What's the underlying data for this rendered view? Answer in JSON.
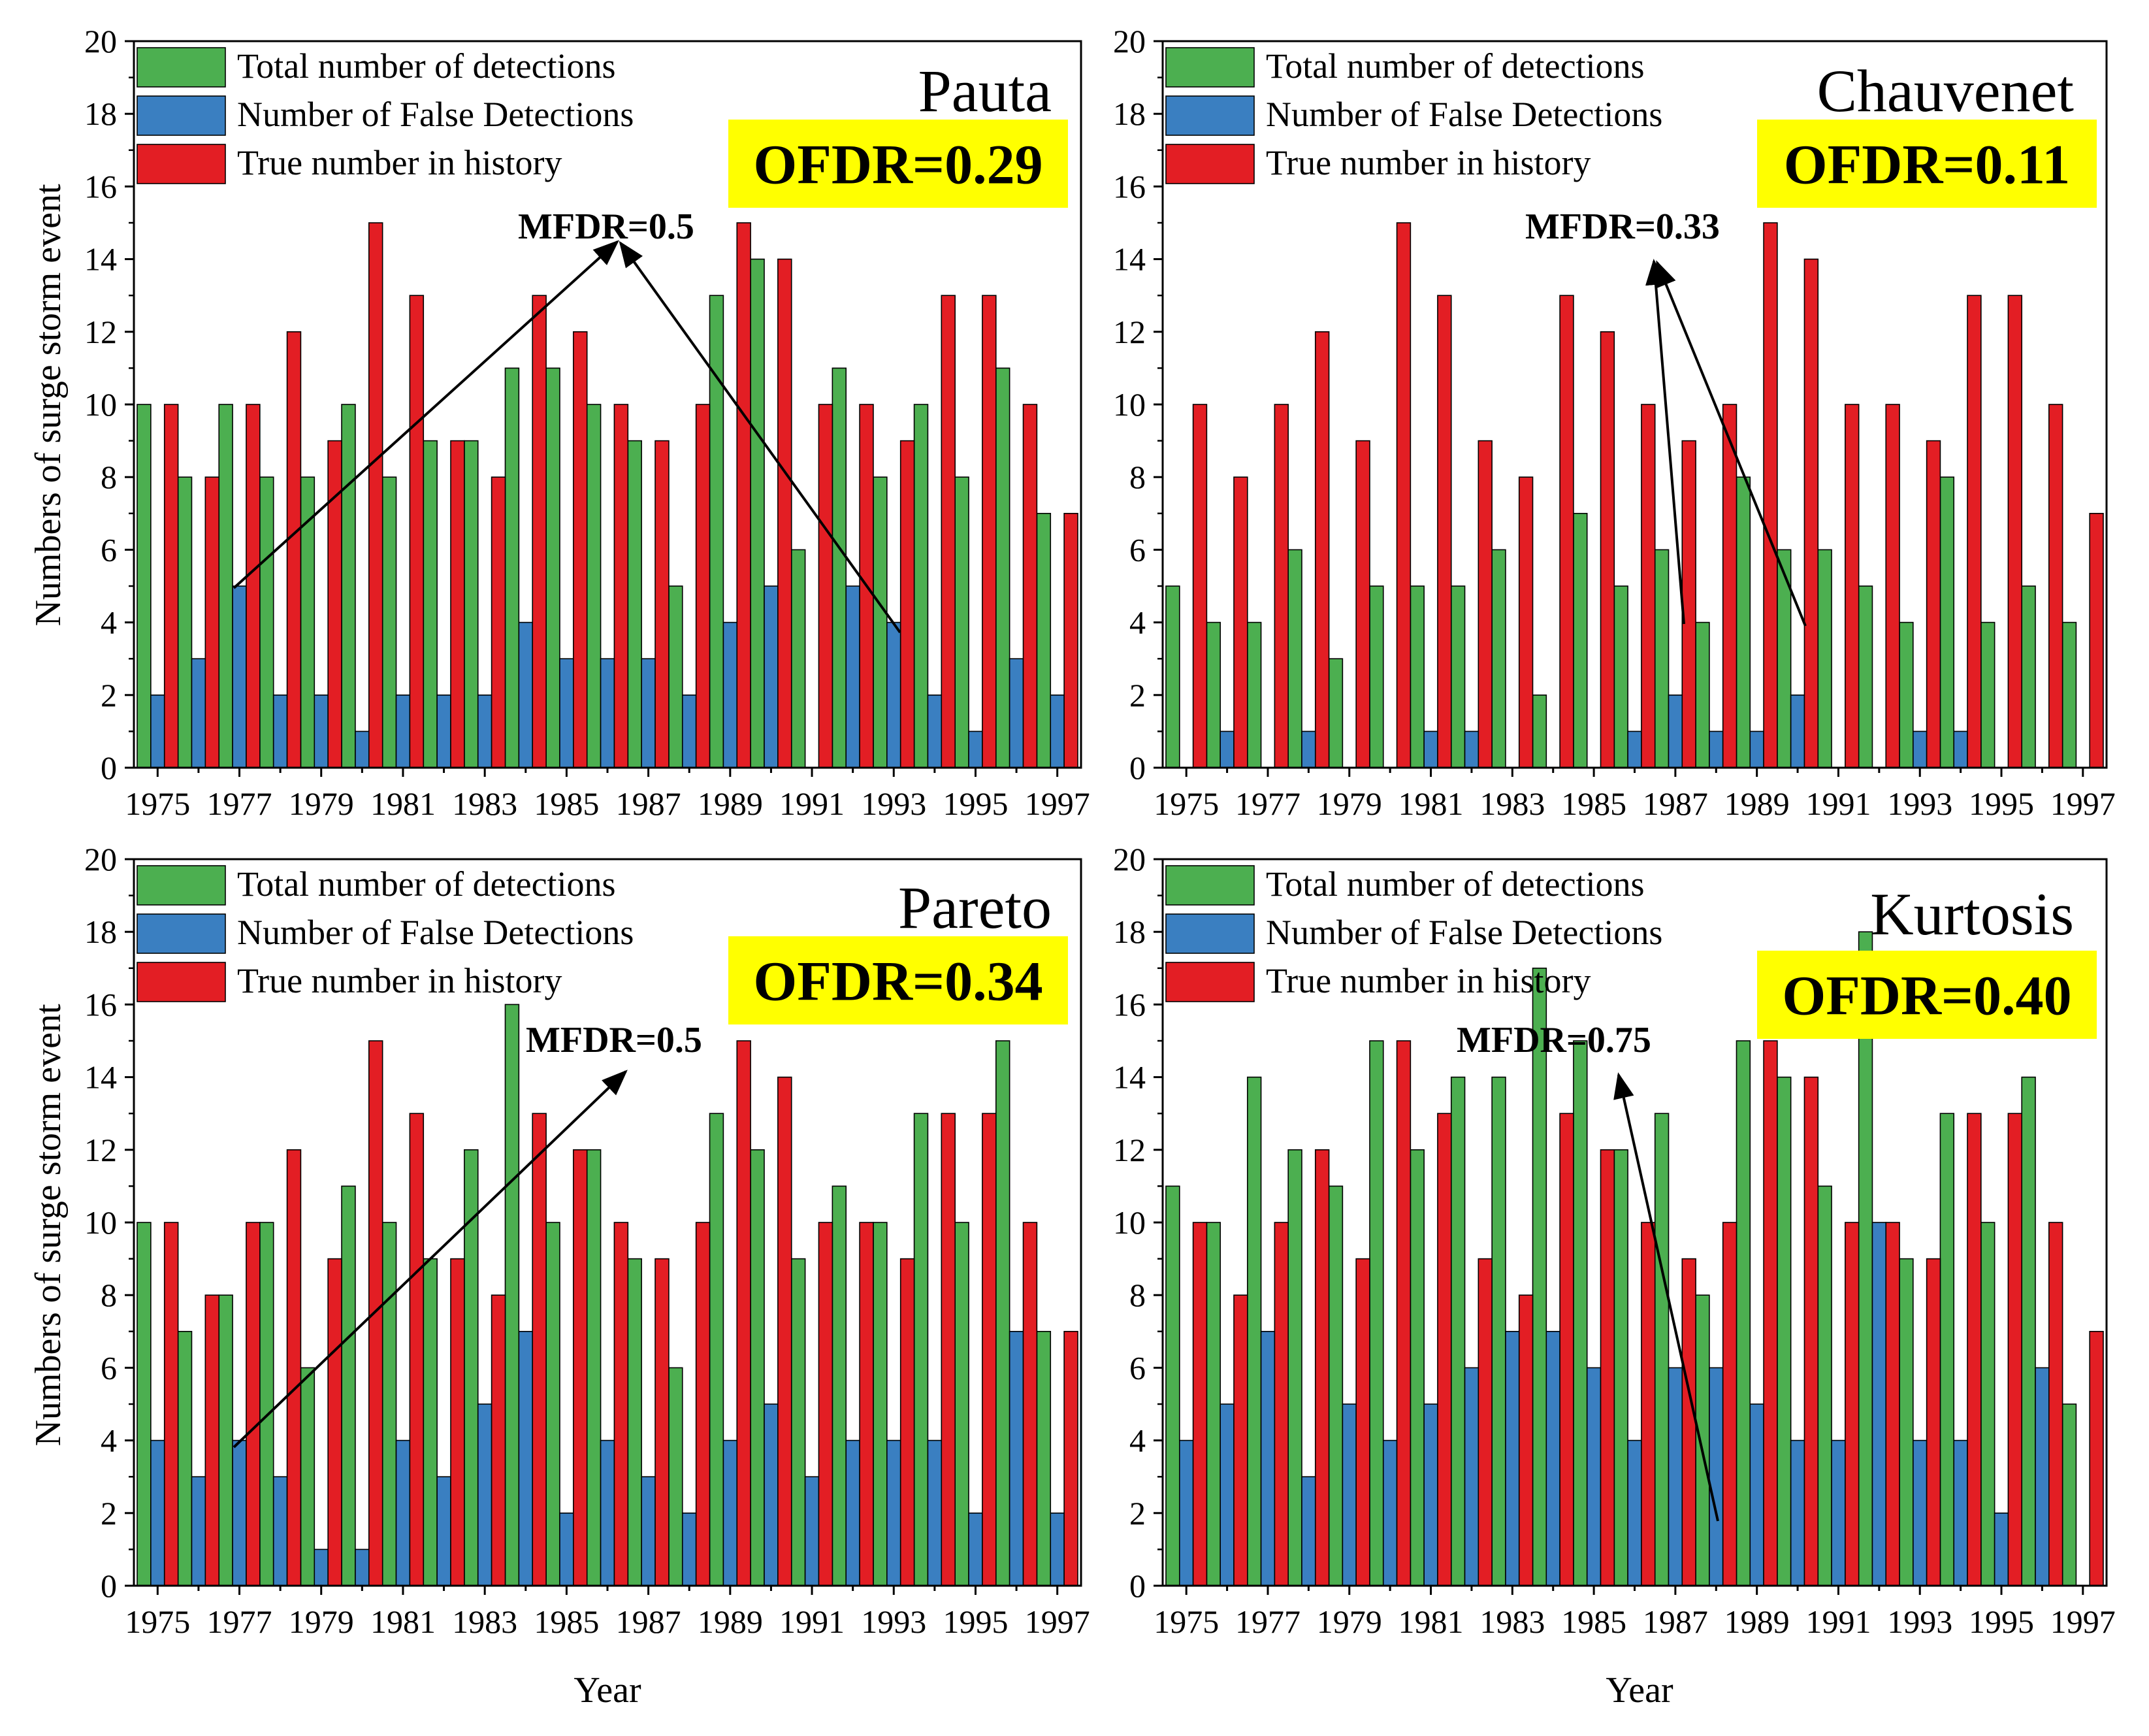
{
  "xlabel": "Year",
  "ylabel": "Numbers of surge storm event",
  "colors": {
    "total": "#4CAF50",
    "false": "#3A7FC1",
    "true": "#E31E24",
    "highlight": "#FFFF00"
  },
  "chart_data": [
    {
      "type": "bar",
      "method": "Pauta",
      "ofdr": "OFDR=0.29",
      "mfdr": "MFDR=0.5",
      "categories": [
        "1975",
        "1976",
        "1977",
        "1978",
        "1979",
        "1980",
        "1981",
        "1982",
        "1983",
        "1984",
        "1985",
        "1986",
        "1987",
        "1988",
        "1989",
        "1990",
        "1991",
        "1992",
        "1993",
        "1994",
        "1995",
        "1996",
        "1997"
      ],
      "xtick_labels": [
        "1975",
        "1977",
        "1979",
        "1981",
        "1983",
        "1985",
        "1987",
        "1989",
        "1991",
        "1993",
        "1995",
        "1997"
      ],
      "ylim": [
        0,
        20
      ],
      "yticks": [
        "0",
        "2",
        "4",
        "6",
        "8",
        "10",
        "12",
        "14",
        "16",
        "18",
        "20"
      ],
      "series": [
        {
          "name": "Total number of detections",
          "values": [
            10,
            8,
            10,
            8,
            8,
            10,
            8,
            9,
            9,
            11,
            11,
            10,
            9,
            5,
            13,
            14,
            6,
            11,
            8,
            10,
            8,
            11,
            7
          ]
        },
        {
          "name": "Number of False Detections",
          "values": [
            2,
            3,
            5,
            2,
            2,
            1,
            2,
            2,
            2,
            4,
            3,
            3,
            3,
            2,
            4,
            5,
            0,
            5,
            4,
            2,
            1,
            3,
            2
          ]
        },
        {
          "name": "True number in history",
          "values": [
            10,
            8,
            10,
            12,
            9,
            15,
            13,
            9,
            8,
            13,
            12,
            10,
            9,
            10,
            15,
            14,
            10,
            10,
            9,
            13,
            13,
            10,
            7
          ]
        }
      ],
      "legend": [
        "Total number of detections",
        "Number of False Detections",
        "True number in history"
      ]
    },
    {
      "type": "bar",
      "method": "Chauvenet",
      "ofdr": "OFDR=0.11",
      "mfdr": "MFDR=0.33",
      "categories": [
        "1975",
        "1976",
        "1977",
        "1978",
        "1979",
        "1980",
        "1981",
        "1982",
        "1983",
        "1984",
        "1985",
        "1986",
        "1987",
        "1988",
        "1989",
        "1990",
        "1991",
        "1992",
        "1993",
        "1994",
        "1995",
        "1996",
        "1997"
      ],
      "xtick_labels": [
        "1975",
        "1977",
        "1979",
        "1981",
        "1983",
        "1985",
        "1987",
        "1989",
        "1991",
        "1993",
        "1995",
        "1997"
      ],
      "ylim": [
        0,
        20
      ],
      "yticks": [
        "0",
        "2",
        "4",
        "6",
        "8",
        "10",
        "12",
        "14",
        "16",
        "18",
        "20"
      ],
      "series": [
        {
          "name": "Total number of detections",
          "values": [
            5,
            4,
            4,
            6,
            3,
            5,
            5,
            5,
            6,
            2,
            7,
            5,
            6,
            4,
            8,
            6,
            6,
            5,
            4,
            8,
            4,
            5,
            4
          ]
        },
        {
          "name": "Number of False Detections",
          "values": [
            0,
            1,
            0,
            1,
            0,
            0,
            1,
            1,
            0,
            0,
            0,
            1,
            2,
            1,
            1,
            2,
            0,
            0,
            1,
            1,
            0,
            0,
            0
          ]
        },
        {
          "name": "True number in history",
          "values": [
            10,
            8,
            10,
            12,
            9,
            15,
            13,
            9,
            8,
            13,
            12,
            10,
            9,
            10,
            15,
            14,
            10,
            10,
            9,
            13,
            13,
            10,
            7
          ]
        }
      ],
      "legend": [
        "Total number of detections",
        "Number of False Detections",
        "True number in history"
      ]
    },
    {
      "type": "bar",
      "method": "Pareto",
      "ofdr": "OFDR=0.34",
      "mfdr": "MFDR=0.5",
      "categories": [
        "1975",
        "1976",
        "1977",
        "1978",
        "1979",
        "1980",
        "1981",
        "1982",
        "1983",
        "1984",
        "1985",
        "1986",
        "1987",
        "1988",
        "1989",
        "1990",
        "1991",
        "1992",
        "1993",
        "1994",
        "1995",
        "1996",
        "1997"
      ],
      "xtick_labels": [
        "1975",
        "1977",
        "1979",
        "1981",
        "1983",
        "1985",
        "1987",
        "1989",
        "1991",
        "1993",
        "1995",
        "1997"
      ],
      "ylim": [
        0,
        20
      ],
      "yticks": [
        "0",
        "2",
        "4",
        "6",
        "8",
        "10",
        "12",
        "14",
        "16",
        "18",
        "20"
      ],
      "series": [
        {
          "name": "Total number of detections",
          "values": [
            10,
            7,
            8,
            10,
            6,
            11,
            10,
            9,
            12,
            16,
            10,
            12,
            9,
            6,
            13,
            12,
            9,
            11,
            10,
            13,
            10,
            15,
            7
          ]
        },
        {
          "name": "Number of False Detections",
          "values": [
            4,
            3,
            4,
            3,
            1,
            1,
            4,
            3,
            5,
            7,
            2,
            4,
            3,
            2,
            4,
            5,
            3,
            4,
            4,
            4,
            2,
            7,
            2
          ]
        },
        {
          "name": "True number in history",
          "values": [
            10,
            8,
            10,
            12,
            9,
            15,
            13,
            9,
            8,
            13,
            12,
            10,
            9,
            10,
            15,
            14,
            10,
            10,
            9,
            13,
            13,
            10,
            7
          ]
        }
      ],
      "legend": [
        "Total number of detections",
        "Number of False Detections",
        "True number in history"
      ]
    },
    {
      "type": "bar",
      "method": "Kurtosis",
      "ofdr": "OFDR=0.40",
      "mfdr": "MFDR=0.75",
      "categories": [
        "1975",
        "1976",
        "1977",
        "1978",
        "1979",
        "1980",
        "1981",
        "1982",
        "1983",
        "1984",
        "1985",
        "1986",
        "1987",
        "1988",
        "1989",
        "1990",
        "1991",
        "1992",
        "1993",
        "1994",
        "1995",
        "1996",
        "1997"
      ],
      "xtick_labels": [
        "1975",
        "1977",
        "1979",
        "1981",
        "1983",
        "1985",
        "1987",
        "1989",
        "1991",
        "1993",
        "1995",
        "1997"
      ],
      "ylim": [
        0,
        20
      ],
      "yticks": [
        "0",
        "2",
        "4",
        "6",
        "8",
        "10",
        "12",
        "14",
        "16",
        "18",
        "20"
      ],
      "series": [
        {
          "name": "Total number of detections",
          "values": [
            11,
            10,
            14,
            12,
            11,
            15,
            12,
            14,
            14,
            17,
            15,
            12,
            13,
            8,
            15,
            14,
            11,
            18,
            9,
            13,
            10,
            14,
            5
          ]
        },
        {
          "name": "Number of False Detections",
          "values": [
            4,
            5,
            7,
            3,
            5,
            4,
            5,
            6,
            7,
            7,
            6,
            4,
            6,
            6,
            5,
            4,
            4,
            10,
            4,
            4,
            2,
            6,
            0
          ]
        },
        {
          "name": "True number in history",
          "values": [
            10,
            8,
            10,
            12,
            9,
            15,
            13,
            9,
            8,
            13,
            12,
            10,
            9,
            10,
            15,
            14,
            10,
            10,
            9,
            13,
            13,
            10,
            7
          ]
        }
      ],
      "legend": [
        "Total number of detections",
        "Number of False Detections",
        "True number in history"
      ]
    }
  ]
}
